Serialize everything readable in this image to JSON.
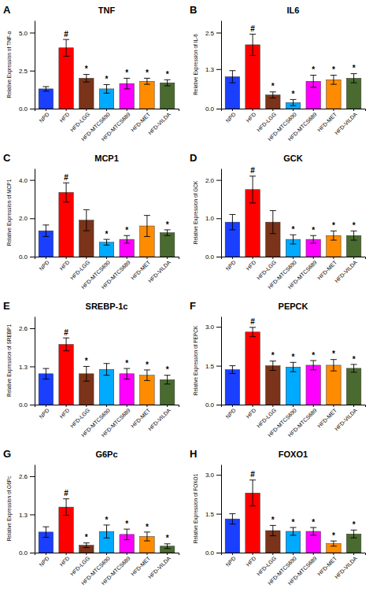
{
  "chart_data": [
    {
      "type": "bar",
      "label": "A",
      "title": "TNF",
      "ylabel": "Relative Expression of TNF-α",
      "categories": [
        "NPD",
        "HFD",
        "HFD-LGG",
        "HFD-MTCS690",
        "HFD-MTCS689",
        "HFD-MET",
        "HFD-VILDA"
      ],
      "values": [
        1.3,
        4.0,
        2.0,
        1.3,
        1.65,
        1.8,
        1.7
      ],
      "errors": [
        0.15,
        0.55,
        0.25,
        0.28,
        0.35,
        0.2,
        0.2
      ],
      "colors": [
        "#1a3fff",
        "#ff0000",
        "#7b3319",
        "#00aaff",
        "#ff00ff",
        "#ff8c00",
        "#4a6b2f"
      ],
      "ylim": [
        0,
        5.8
      ],
      "yticks": [
        {
          "value": 0,
          "label": "0.0"
        },
        2.5,
        {
          "value": 5,
          "label": "5.0"
        }
      ],
      "annotations": [
        {
          "x": "HFD",
          "text": "#"
        },
        {
          "x": "HFD-LGG",
          "text": "*"
        },
        {
          "x": "HFD-MTCS690",
          "text": "*"
        },
        {
          "x": "HFD-MTCS689",
          "text": "*"
        },
        {
          "x": "HFD-MET",
          "text": "*"
        },
        {
          "x": "HFD-VILDA",
          "text": "*"
        }
      ],
      "grid": false
    },
    {
      "type": "bar",
      "label": "B",
      "title": "IL6",
      "ylabel": "Relative Expression of IL-6",
      "categories": [
        "NPD",
        "HFD",
        "HFD-LGG",
        "HFD-MTCS690",
        "HFD-MTCS689",
        "HFD-MET",
        "HFD-VILDA"
      ],
      "values": [
        1.05,
        2.1,
        0.45,
        0.2,
        0.9,
        0.95,
        1.0
      ],
      "errors": [
        0.2,
        0.35,
        0.1,
        0.1,
        0.2,
        0.15,
        0.15
      ],
      "colors": [
        "#1a3fff",
        "#ff0000",
        "#7b3319",
        "#00aaff",
        "#ff00ff",
        "#ff8c00",
        "#4a6b2f"
      ],
      "ylim": [
        0,
        2.9
      ],
      "yticks": [
        {
          "value": 0,
          "label": "0.0"
        },
        1.3,
        2.5
      ],
      "annotations": [
        {
          "x": "HFD",
          "text": "#"
        },
        {
          "x": "HFD-LGG",
          "text": "*"
        },
        {
          "x": "HFD-MTCS690",
          "text": "*"
        },
        {
          "x": "HFD-MTCS689",
          "text": "*"
        },
        {
          "x": "HFD-MET",
          "text": "*"
        },
        {
          "x": "HFD-VILDA",
          "text": "*"
        }
      ],
      "grid": false
    },
    {
      "type": "bar",
      "label": "C",
      "title": "MCP1",
      "ylabel": "Relative Expression of MCP1",
      "categories": [
        "NPD",
        "HFD",
        "HFD-LGG",
        "HFD-MTCS690",
        "HFD-MTCS689",
        "HFD-MET",
        "HFD-VILDA"
      ],
      "values": [
        1.35,
        3.35,
        1.9,
        0.75,
        0.9,
        1.6,
        1.25
      ],
      "errors": [
        0.3,
        0.5,
        0.55,
        0.15,
        0.2,
        0.55,
        0.15
      ],
      "colors": [
        "#1a3fff",
        "#ff0000",
        "#7b3319",
        "#00aaff",
        "#ff00ff",
        "#ff8c00",
        "#4a6b2f"
      ],
      "ylim": [
        0,
        4.6
      ],
      "yticks": [
        {
          "value": 0,
          "label": "0.0"
        },
        {
          "value": 2,
          "label": "2.0"
        },
        {
          "value": 4,
          "label": "4.0"
        }
      ],
      "annotations": [
        {
          "x": "HFD",
          "text": "#"
        },
        {
          "x": "HFD-MTCS690",
          "text": "*"
        },
        {
          "x": "HFD-MTCS689",
          "text": "*"
        },
        {
          "x": "HFD-VILDA",
          "text": "*"
        }
      ],
      "grid": false
    },
    {
      "type": "bar",
      "label": "D",
      "title": "GCK",
      "ylabel": "Relative Expression of GCK",
      "categories": [
        "NPD",
        "HFD",
        "HFD-LGG",
        "HFD-MTCS690",
        "HFD-MTCS689",
        "HFD-MET",
        "HFD-VILDA"
      ],
      "values": [
        0.9,
        1.75,
        0.9,
        0.45,
        0.45,
        0.55,
        0.55
      ],
      "errors": [
        0.2,
        0.35,
        0.3,
        0.12,
        0.1,
        0.12,
        0.12
      ],
      "colors": [
        "#1a3fff",
        "#ff0000",
        "#7b3319",
        "#00aaff",
        "#ff00ff",
        "#ff8c00",
        "#4a6b2f"
      ],
      "ylim": [
        0,
        2.3
      ],
      "yticks": [
        {
          "value": 0,
          "label": "0.0"
        },
        {
          "value": 1,
          "label": "1.0"
        },
        {
          "value": 2,
          "label": "2.0"
        }
      ],
      "annotations": [
        {
          "x": "HFD",
          "text": "#"
        },
        {
          "x": "HFD-MTCS690",
          "text": "*"
        },
        {
          "x": "HFD-MTCS689",
          "text": "*"
        },
        {
          "x": "HFD-MET",
          "text": "*"
        },
        {
          "x": "HFD-VILDA",
          "text": "*"
        }
      ],
      "grid": false
    },
    {
      "type": "bar",
      "label": "E",
      "title": "SREBP-1c",
      "ylabel": "Relative Expression of SREBP1",
      "categories": [
        "NPD",
        "HFD",
        "HFD-LGG",
        "HFD-MTCS690",
        "HFD-MTCS689",
        "HFD-MET",
        "HFD-VILDA"
      ],
      "values": [
        1.05,
        2.05,
        1.05,
        1.2,
        1.05,
        1.0,
        0.85
      ],
      "errors": [
        0.18,
        0.22,
        0.25,
        0.2,
        0.18,
        0.18,
        0.15
      ],
      "colors": [
        "#1a3fff",
        "#ff0000",
        "#7b3319",
        "#00aaff",
        "#ff00ff",
        "#ff8c00",
        "#4a6b2f"
      ],
      "ylim": [
        0,
        3.0
      ],
      "yticks": [
        {
          "value": 0,
          "label": "0.0"
        },
        1.3,
        2.6
      ],
      "annotations": [
        {
          "x": "HFD",
          "text": "#"
        },
        {
          "x": "HFD-LGG",
          "text": "*"
        },
        {
          "x": "HFD-MTCS689",
          "text": "*"
        },
        {
          "x": "HFD-MET",
          "text": "*"
        },
        {
          "x": "HFD-VILDA",
          "text": "*"
        }
      ],
      "grid": false
    },
    {
      "type": "bar",
      "label": "F",
      "title": "PEPCK",
      "ylabel": "Relative Expression of PEPCK",
      "categories": [
        "NPD",
        "HFD",
        "HFD-LGG",
        "HFD-MTCS690",
        "HFD-MTCS689",
        "HFD-MET",
        "HFD-VILDA"
      ],
      "values": [
        1.35,
        2.8,
        1.5,
        1.45,
        1.52,
        1.52,
        1.4
      ],
      "errors": [
        0.15,
        0.18,
        0.18,
        0.18,
        0.18,
        0.22,
        0.15
      ],
      "colors": [
        "#1a3fff",
        "#ff0000",
        "#7b3319",
        "#00aaff",
        "#ff00ff",
        "#ff8c00",
        "#4a6b2f"
      ],
      "ylim": [
        0,
        3.4
      ],
      "yticks": [
        {
          "value": 0,
          "label": "0.0"
        },
        1.5,
        {
          "value": 3,
          "label": "3.0"
        }
      ],
      "annotations": [
        {
          "x": "HFD",
          "text": "#"
        },
        {
          "x": "HFD-LGG",
          "text": "*"
        },
        {
          "x": "HFD-MTCS690",
          "text": "*"
        },
        {
          "x": "HFD-MTCS689",
          "text": "*"
        },
        {
          "x": "HFD-MET",
          "text": "*"
        },
        {
          "x": "HFD-VILDA",
          "text": "*"
        }
      ],
      "grid": false
    },
    {
      "type": "bar",
      "label": "G",
      "title": "G6Pc",
      "ylabel": "Relative Expression of G6Pc",
      "categories": [
        "NPD",
        "HFD",
        "HFD-LGG",
        "HFD-MTCS690",
        "HFD-MTCS689",
        "HFD-MET",
        "HFD-VILDA"
      ],
      "values": [
        0.7,
        1.55,
        0.25,
        0.72,
        0.62,
        0.55,
        0.22
      ],
      "errors": [
        0.18,
        0.28,
        0.08,
        0.22,
        0.18,
        0.15,
        0.08
      ],
      "colors": [
        "#1a3fff",
        "#ff0000",
        "#7b3319",
        "#00aaff",
        "#ff00ff",
        "#ff8c00",
        "#4a6b2f"
      ],
      "ylim": [
        0,
        3.0
      ],
      "yticks": [
        {
          "value": 0,
          "label": "0.0"
        },
        1.3,
        2.6
      ],
      "annotations": [
        {
          "x": "HFD",
          "text": "#"
        },
        {
          "x": "HFD-LGG",
          "text": "*"
        },
        {
          "x": "HFD-MTCS690",
          "text": "*"
        },
        {
          "x": "HFD-MTCS689",
          "text": "*"
        },
        {
          "x": "HFD-MET",
          "text": "*"
        },
        {
          "x": "HFD-VILDA",
          "text": "*"
        }
      ],
      "grid": false
    },
    {
      "type": "bar",
      "label": "H",
      "title": "FOXO1",
      "ylabel": "Relative Expression of FOXO1",
      "categories": [
        "NPD",
        "HFD",
        "HFD-LGG",
        "HFD-MTCS690",
        "HFD-MTCS689",
        "HFD-MET",
        "HFD-VILDA"
      ],
      "values": [
        1.3,
        2.3,
        0.85,
        0.82,
        0.82,
        0.35,
        0.72
      ],
      "errors": [
        0.2,
        0.5,
        0.2,
        0.15,
        0.15,
        0.1,
        0.15
      ],
      "colors": [
        "#1a3fff",
        "#ff0000",
        "#7b3319",
        "#00aaff",
        "#ff00ff",
        "#ff8c00",
        "#4a6b2f"
      ],
      "ylim": [
        0,
        3.4
      ],
      "yticks": [
        {
          "value": 0,
          "label": "0.0"
        },
        1.5,
        {
          "value": 3,
          "label": "3.0"
        }
      ],
      "annotations": [
        {
          "x": "HFD",
          "text": "#"
        },
        {
          "x": "HFD-LGG",
          "text": "*"
        },
        {
          "x": "HFD-MTCS690",
          "text": "*"
        },
        {
          "x": "HFD-MTCS689",
          "text": "*"
        },
        {
          "x": "HFD-MET",
          "text": "*"
        },
        {
          "x": "HFD-VILDA",
          "text": "*"
        }
      ],
      "grid": false
    }
  ]
}
